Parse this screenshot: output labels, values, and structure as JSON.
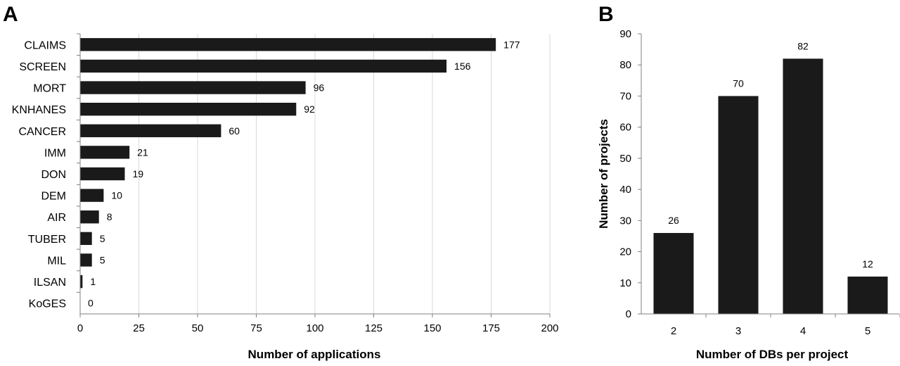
{
  "chart_data": [
    {
      "panel": "A",
      "type": "bar",
      "orientation": "horizontal",
      "categories": [
        "CLAIMS",
        "SCREEN",
        "MORT",
        "KNHANES",
        "CANCER",
        "IMM",
        "DON",
        "DEM",
        "AIR",
        "TUBER",
        "MIL",
        "ILSAN",
        "KoGES"
      ],
      "values": [
        177,
        156,
        96,
        92,
        60,
        21,
        19,
        10,
        8,
        5,
        5,
        1,
        0
      ],
      "xlabel": "Number of applications",
      "ylabel": "",
      "xlim": [
        0,
        200
      ],
      "xticks": [
        0,
        25,
        50,
        75,
        100,
        125,
        150,
        175,
        200
      ],
      "grid": "vertical",
      "bar_color": "#1a1a1a"
    },
    {
      "panel": "B",
      "type": "bar",
      "orientation": "vertical",
      "categories": [
        "2",
        "3",
        "4",
        "5"
      ],
      "values": [
        26,
        70,
        82,
        12
      ],
      "xlabel": "Number of DBs per project",
      "ylabel": "Number of projects",
      "ylim": [
        0,
        90
      ],
      "yticks": [
        0,
        10,
        20,
        30,
        40,
        50,
        60,
        70,
        80,
        90
      ],
      "grid": "none",
      "bar_color": "#1a1a1a"
    }
  ]
}
